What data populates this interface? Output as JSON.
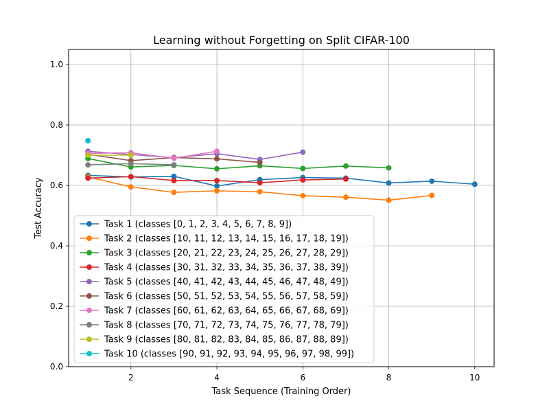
{
  "chart_data": {
    "type": "line",
    "title": "Learning without Forgetting on Split CIFAR-100",
    "xlabel": "Task Sequence (Training Order)",
    "ylabel": "Test Accuracy",
    "xlim": [
      0.55,
      10.45
    ],
    "ylim": [
      0.0,
      1.05
    ],
    "xticks": [
      2,
      4,
      6,
      8,
      10
    ],
    "yticks": [
      0.0,
      0.2,
      0.4,
      0.6,
      0.8,
      1.0
    ],
    "grid": true,
    "legend_position": "lower-left",
    "series": [
      {
        "name": "Task 1 (classes [0, 1, 2, 3, 4, 5, 6, 7, 8, 9])",
        "color": "#1f77b4",
        "x": [
          1,
          2,
          3,
          4,
          5,
          6,
          7,
          8,
          9,
          10
        ],
        "values": [
          0.633,
          0.628,
          0.63,
          0.598,
          0.619,
          0.626,
          0.624,
          0.608,
          0.614,
          0.604
        ]
      },
      {
        "name": "Task 2 (classes [10, 11, 12, 13, 14, 15, 16, 17, 18, 19])",
        "color": "#ff7f0e",
        "x": [
          1,
          2,
          3,
          4,
          5,
          6,
          7,
          8,
          9
        ],
        "values": [
          0.628,
          0.595,
          0.577,
          0.582,
          0.579,
          0.566,
          0.561,
          0.551,
          0.567
        ]
      },
      {
        "name": "Task 3 (classes [20, 21, 22, 23, 24, 25, 26, 27, 28, 29])",
        "color": "#2ca02c",
        "x": [
          1,
          2,
          3,
          4,
          5,
          6,
          7,
          8
        ],
        "values": [
          0.689,
          0.661,
          0.666,
          0.655,
          0.665,
          0.656,
          0.664,
          0.658
        ]
      },
      {
        "name": "Task 4 (classes [30, 31, 32, 33, 34, 35, 36, 37, 38, 39])",
        "color": "#d62728",
        "x": [
          1,
          2,
          3,
          4,
          5,
          6,
          7
        ],
        "values": [
          0.624,
          0.629,
          0.616,
          0.616,
          0.609,
          0.618,
          0.621
        ]
      },
      {
        "name": "Task 5 (classes [40, 41, 42, 43, 44, 45, 46, 47, 48, 49])",
        "color": "#9467bd",
        "x": [
          1,
          2,
          3,
          4,
          5,
          6
        ],
        "values": [
          0.713,
          0.702,
          0.692,
          0.705,
          0.686,
          0.71
        ]
      },
      {
        "name": "Task 6 (classes [50, 51, 52, 53, 54, 55, 56, 57, 58, 59])",
        "color": "#8c564b",
        "x": [
          1,
          2,
          3,
          4,
          5
        ],
        "values": [
          0.703,
          0.682,
          0.692,
          0.688,
          0.676
        ]
      },
      {
        "name": "Task 7 (classes [60, 61, 62, 63, 64, 65, 66, 67, 68, 69])",
        "color": "#e377c2",
        "x": [
          1,
          2,
          3,
          4
        ],
        "values": [
          0.706,
          0.708,
          0.69,
          0.713
        ]
      },
      {
        "name": "Task 8 (classes [70, 71, 72, 73, 74, 75, 76, 77, 78, 79])",
        "color": "#7f7f7f",
        "x": [
          1,
          2,
          3
        ],
        "values": [
          0.668,
          0.672,
          0.668
        ]
      },
      {
        "name": "Task 9 (classes [80, 81, 82, 83, 84, 85, 86, 87, 88, 89])",
        "color": "#bcbd22",
        "x": [
          1,
          2
        ],
        "values": [
          0.7,
          0.7
        ]
      },
      {
        "name": "Task 10 (classes [90, 91, 92, 93, 94, 95, 96, 97, 98, 99])",
        "color": "#17becf",
        "x": [
          1
        ],
        "values": [
          0.748
        ]
      }
    ]
  }
}
